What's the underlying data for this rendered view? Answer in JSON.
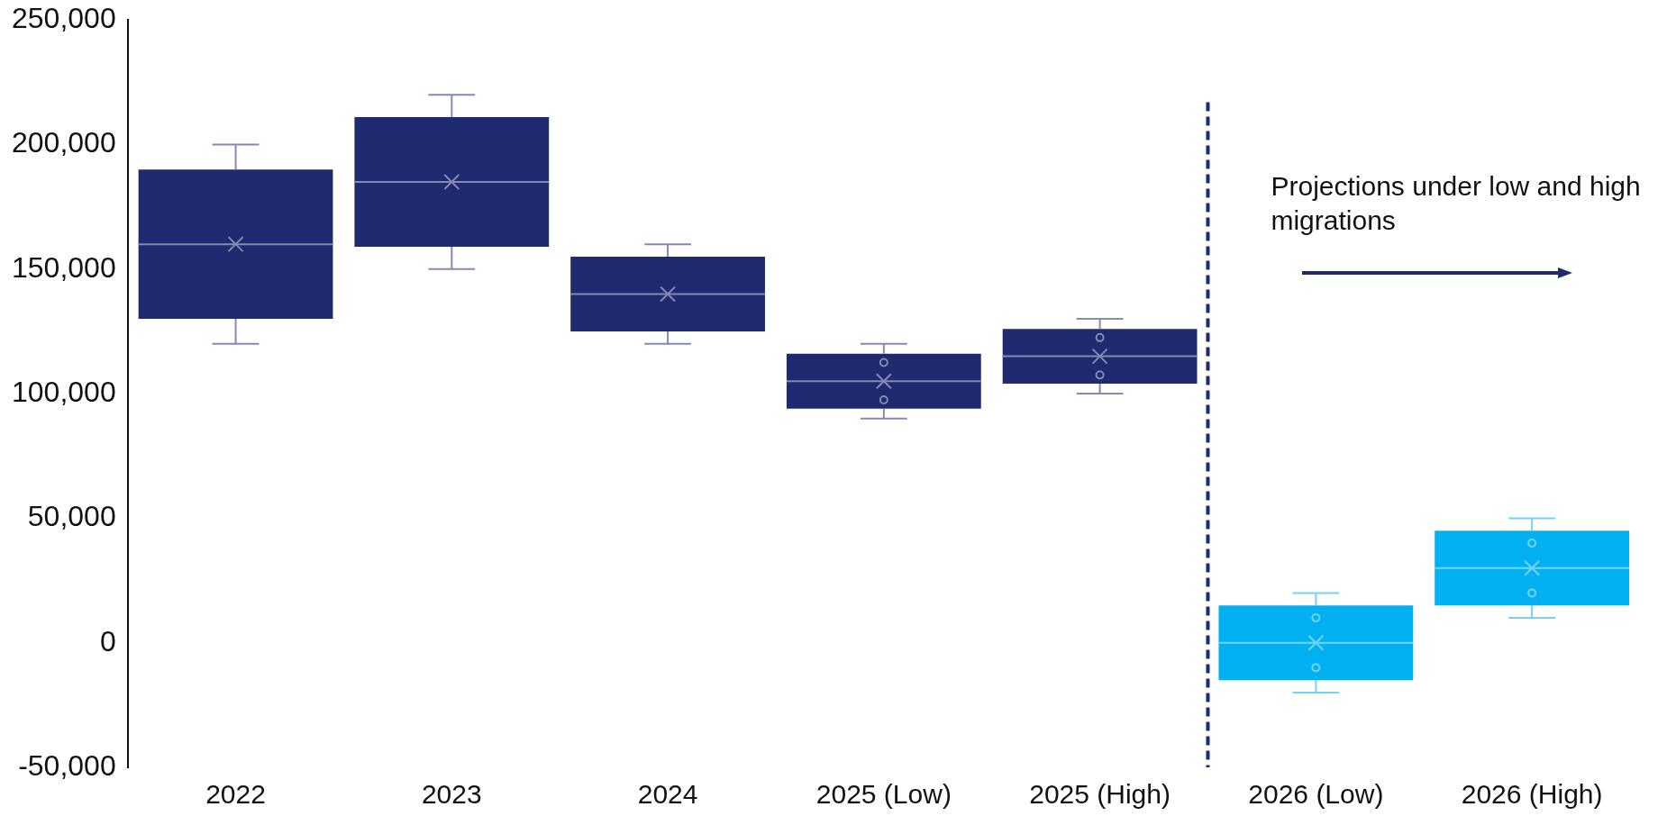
{
  "chart_data": {
    "type": "box",
    "categories": [
      "2022",
      "2023",
      "2024",
      "2025 (Low)",
      "2025 (High)",
      "2026 (Low)",
      "2026 (High)"
    ],
    "boxes": [
      {
        "low": 120000,
        "q1": 130000,
        "median": 160000,
        "q3": 190000,
        "high": 200000,
        "mean": 160000
      },
      {
        "low": 150000,
        "q1": 159000,
        "median": 185000,
        "q3": 211000,
        "high": 220000,
        "mean": 185000
      },
      {
        "low": 120000,
        "q1": 125000,
        "median": 140000,
        "q3": 155000,
        "high": 160000,
        "mean": 140000
      },
      {
        "low": 90000,
        "q1": 94000,
        "median": 105000,
        "q3": 116000,
        "high": 120000,
        "mean": 105000,
        "outliers": [
          97500,
          112500
        ]
      },
      {
        "low": 100000,
        "q1": 104000,
        "median": 115000,
        "q3": 126000,
        "high": 130000,
        "mean": 115000,
        "outliers": [
          107500,
          122500
        ]
      },
      {
        "low": -20000,
        "q1": -15000,
        "median": 0,
        "q3": 15000,
        "high": 20000,
        "mean": 0,
        "outliers": [
          -10000,
          10000
        ]
      },
      {
        "low": 10000,
        "q1": 15000,
        "median": 30000,
        "q3": 45000,
        "high": 50000,
        "mean": 30000,
        "outliers": [
          20000,
          40000
        ]
      }
    ],
    "colors": [
      "#1f2a70",
      "#1f2a70",
      "#1f2a70",
      "#1f2a70",
      "#1f2a70",
      "#00b0f0",
      "#00b0f0"
    ],
    "ylim": [
      -50000,
      250000
    ],
    "yticks": [
      {
        "value": -50000,
        "label": "-50,000"
      },
      {
        "value": 0,
        "label": "0"
      },
      {
        "value": 50000,
        "label": "50,000"
      },
      {
        "value": 100000,
        "label": "100,000"
      },
      {
        "value": 150000,
        "label": "150,000"
      },
      {
        "value": 200000,
        "label": "200,000"
      },
      {
        "value": 250000,
        "label": "250,000"
      }
    ],
    "grid": false,
    "legend": false,
    "ref_lines": [
      {
        "axis": "x",
        "value": "2026 (Low)",
        "color": "#1f2a70",
        "line_style": "dashed"
      }
    ],
    "annotations": [
      "Projections under low and high migrations"
    ]
  }
}
